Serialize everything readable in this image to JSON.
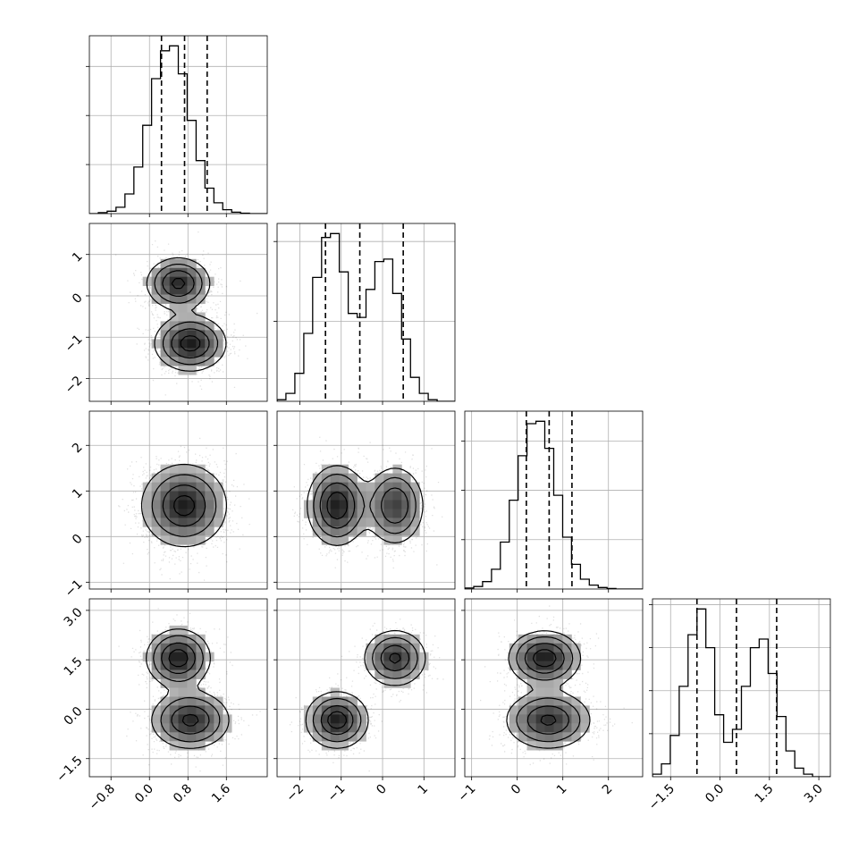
{
  "chart_data": {
    "type": "corner",
    "title": "",
    "n_params": 4,
    "grid": true,
    "params": [
      {
        "range": [
          -1.25,
          2.45
        ],
        "ticks": [
          -0.8,
          0.0,
          0.8,
          1.6
        ],
        "tick_labels": [
          "−0.8",
          "0.0",
          "0.8",
          "1.6"
        ],
        "quantiles": [
          0.25,
          0.73,
          1.2
        ],
        "mixture": [
          {
            "w": 1.0,
            "mu": 0.72,
            "sd": 0.44
          }
        ]
      },
      {
        "range": [
          -2.55,
          1.75
        ],
        "ticks": [
          -2,
          -1,
          0,
          1
        ],
        "tick_labels": [
          "−2",
          "−1",
          "0",
          "1"
        ],
        "quantiles": [
          -1.38,
          -0.55,
          0.5
        ],
        "mixture": [
          {
            "w": 0.56,
            "mu": -1.1,
            "sd": 0.37
          },
          {
            "w": 0.44,
            "mu": 0.3,
            "sd": 0.37
          }
        ]
      },
      {
        "range": [
          -1.15,
          2.75
        ],
        "ticks": [
          -1,
          0,
          1,
          2
        ],
        "tick_labels": [
          "−1",
          "0",
          "1",
          "2"
        ],
        "quantiles": [
          0.2,
          0.7,
          1.2
        ],
        "mixture": [
          {
            "w": 1.0,
            "mu": 0.68,
            "sd": 0.45
          }
        ]
      },
      {
        "range": [
          -2.05,
          3.35
        ],
        "ticks": [
          -1.5,
          0.0,
          1.5,
          3.0
        ],
        "tick_labels": [
          "−1.5",
          "0.0",
          "1.5",
          "3.0"
        ],
        "quantiles": [
          -0.7,
          0.5,
          1.72
        ],
        "mixture": [
          {
            "w": 0.53,
            "mu": -0.33,
            "sd": 0.5
          },
          {
            "w": 0.47,
            "mu": 1.55,
            "sd": 0.5
          }
        ]
      }
    ],
    "histograms": [
      {
        "param": 0,
        "bin_start": -1.25,
        "bin_width": 0.185,
        "counts": [
          0,
          2,
          5,
          13,
          40,
          95,
          180,
          275,
          332,
          342,
          285,
          190,
          108,
          52,
          22,
          8,
          3,
          1,
          0,
          0
        ]
      },
      {
        "param": 1,
        "bin_start": -2.55,
        "bin_width": 0.215,
        "counts": [
          2,
          10,
          35,
          85,
          155,
          205,
          210,
          162,
          110,
          105,
          140,
          175,
          178,
          135,
          78,
          30,
          10,
          2,
          0,
          0
        ]
      },
      {
        "param": 2,
        "bin_start": -1.15,
        "bin_width": 0.195,
        "counts": [
          2,
          5,
          15,
          40,
          95,
          180,
          270,
          335,
          340,
          285,
          190,
          105,
          50,
          20,
          8,
          3,
          1,
          0,
          0,
          0
        ]
      },
      {
        "param": 3,
        "bin_start": -2.05,
        "bin_width": 0.27,
        "counts": [
          3,
          15,
          48,
          105,
          165,
          195,
          150,
          72,
          40,
          55,
          105,
          150,
          160,
          120,
          70,
          30,
          10,
          3,
          0,
          0
        ]
      }
    ],
    "joint_components": [
      {
        "pair": [
          1,
          0
        ],
        "components": [
          {
            "w": 0.44,
            "mx": 0.6,
            "my": 0.3,
            "sx": 0.34,
            "sy": 0.32,
            "rho": 0.0
          },
          {
            "w": 0.56,
            "mx": 0.85,
            "my": -1.15,
            "sx": 0.38,
            "sy": 0.34,
            "rho": 0.0
          }
        ]
      },
      {
        "pair": [
          2,
          0
        ],
        "components": [
          {
            "w": 1.0,
            "mx": 0.72,
            "my": 0.68,
            "sx": 0.44,
            "sy": 0.45,
            "rho": 0.0
          }
        ]
      },
      {
        "pair": [
          2,
          1
        ],
        "components": [
          {
            "w": 0.56,
            "mx": -1.1,
            "my": 0.68,
            "sx": 0.37,
            "sy": 0.45,
            "rho": 0.0
          },
          {
            "w": 0.44,
            "mx": 0.3,
            "my": 0.68,
            "sx": 0.37,
            "sy": 0.45,
            "rho": 0.0
          }
        ]
      },
      {
        "pair": [
          3,
          0
        ],
        "components": [
          {
            "w": 0.47,
            "mx": 0.6,
            "my": 1.55,
            "sx": 0.34,
            "sy": 0.45,
            "rho": 0.0
          },
          {
            "w": 0.53,
            "mx": 0.85,
            "my": -0.33,
            "sx": 0.42,
            "sy": 0.45,
            "rho": 0.0
          }
        ]
      },
      {
        "pair": [
          3,
          1
        ],
        "components": [
          {
            "w": 0.47,
            "mx": 0.3,
            "my": 1.55,
            "sx": 0.37,
            "sy": 0.42,
            "rho": 0.0
          },
          {
            "w": 0.53,
            "mx": -1.1,
            "my": -0.33,
            "sx": 0.37,
            "sy": 0.42,
            "rho": 0.0
          }
        ]
      },
      {
        "pair": [
          3,
          2
        ],
        "components": [
          {
            "w": 0.47,
            "mx": 0.6,
            "my": 1.55,
            "sx": 0.4,
            "sy": 0.42,
            "rho": 0.0
          },
          {
            "w": 0.53,
            "mx": 0.68,
            "my": -0.33,
            "sx": 0.48,
            "sy": 0.45,
            "rho": 0.0
          }
        ]
      }
    ],
    "contour_levels": [
      0.118,
      0.393,
      0.675,
      0.865
    ],
    "scatter_points_per_panel": 2200
  }
}
